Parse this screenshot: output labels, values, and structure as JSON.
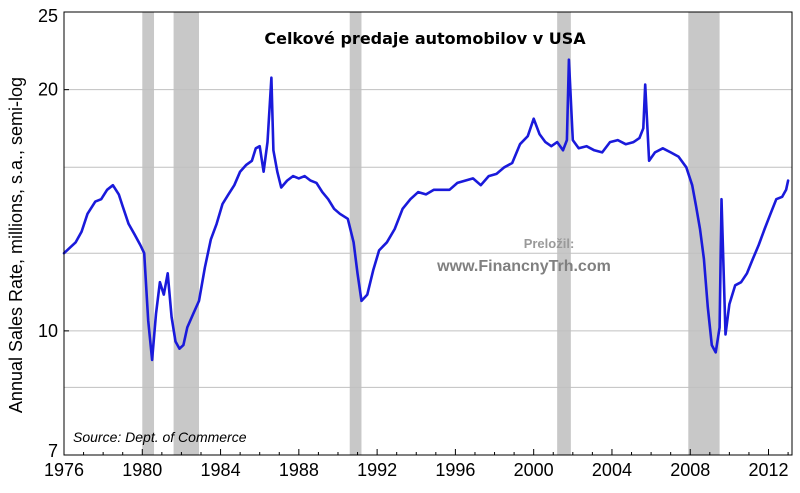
{
  "chart_data": {
    "type": "line",
    "title": "Celkové predaje automobilov v USA",
    "ylabel": "Annual Sales Rate, millions, s.a., semi-log",
    "xlabel": "",
    "source": "Source:  Dept. of Commerce",
    "credit": {
      "line1": "Preložil:",
      "line2": "www.FinancnyTrh.com"
    },
    "y_scale": "log",
    "xlim": [
      1976,
      2013.2
    ],
    "ylim": [
      7,
      25
    ],
    "x_ticks": [
      1976,
      1980,
      1984,
      1988,
      1992,
      1996,
      2000,
      2004,
      2008,
      2012
    ],
    "x_tick_labels": [
      "1976",
      "1980",
      "1984",
      "1988",
      "1992",
      "1996",
      "2000",
      "2004",
      "2008",
      "2012"
    ],
    "y_ticks": [
      7,
      10,
      20,
      25
    ],
    "y_tick_labels": [
      "7",
      "10",
      "20",
      "25"
    ],
    "y_gridlines": [
      8.5,
      10,
      12.5,
      16,
      20
    ],
    "grid": true,
    "recessions": [
      [
        1980.0,
        1980.6
      ],
      [
        1981.6,
        1982.9
      ],
      [
        1990.6,
        1991.2
      ],
      [
        2001.2,
        2001.9
      ],
      [
        2007.9,
        2009.5
      ]
    ],
    "colors": {
      "line": "#1a1adb",
      "recession": "#c8c8c8",
      "grid": "#c0c0c0"
    },
    "series": [
      {
        "x": [
          1976.0,
          1976.3,
          1976.6,
          1976.9,
          1977.2,
          1977.6,
          1977.9,
          1978.2,
          1978.5,
          1978.8,
          1979.0,
          1979.3,
          1979.6,
          1979.9,
          1980.1,
          1980.3,
          1980.5,
          1980.7,
          1980.9,
          1981.1,
          1981.3,
          1981.5,
          1981.7,
          1981.9,
          1982.1,
          1982.3,
          1982.6,
          1982.9,
          1983.2,
          1983.5,
          1983.8,
          1984.1,
          1984.4,
          1984.7,
          1985.0,
          1985.3,
          1985.6,
          1985.8,
          1986.0,
          1986.2,
          1986.4,
          1986.6,
          1986.7,
          1986.9,
          1987.1,
          1987.4,
          1987.7,
          1988.0,
          1988.3,
          1988.6,
          1988.9,
          1989.2,
          1989.5,
          1989.8,
          1990.1,
          1990.5,
          1990.8,
          1991.0,
          1991.2,
          1991.5,
          1991.8,
          1992.1,
          1992.5,
          1992.9,
          1993.3,
          1993.7,
          1994.1,
          1994.5,
          1994.9,
          1995.3,
          1995.7,
          1996.1,
          1996.5,
          1996.9,
          1997.3,
          1997.7,
          1998.1,
          1998.5,
          1998.9,
          1999.3,
          1999.7,
          2000.0,
          2000.3,
          2000.6,
          2000.9,
          2001.2,
          2001.5,
          2001.7,
          2001.8,
          2002.0,
          2002.3,
          2002.7,
          2003.1,
          2003.5,
          2003.9,
          2004.3,
          2004.7,
          2005.1,
          2005.4,
          2005.6,
          2005.7,
          2005.9,
          2006.2,
          2006.6,
          2007.0,
          2007.4,
          2007.8,
          2008.1,
          2008.3,
          2008.5,
          2008.7,
          2008.9,
          2009.1,
          2009.3,
          2009.5,
          2009.6,
          2009.8,
          2010.0,
          2010.3,
          2010.6,
          2010.9,
          2011.2,
          2011.5,
          2011.8,
          2012.1,
          2012.4,
          2012.7,
          2012.9,
          2013.0
        ],
        "y": [
          12.5,
          12.7,
          12.9,
          13.3,
          14.0,
          14.5,
          14.6,
          15.0,
          15.2,
          14.8,
          14.3,
          13.6,
          13.2,
          12.8,
          12.5,
          10.3,
          9.2,
          10.5,
          11.5,
          11.1,
          11.8,
          10.4,
          9.7,
          9.5,
          9.6,
          10.1,
          10.5,
          10.9,
          12.0,
          13.0,
          13.6,
          14.4,
          14.8,
          15.2,
          15.8,
          16.1,
          16.3,
          16.9,
          17.0,
          15.8,
          17.2,
          20.7,
          16.8,
          15.8,
          15.1,
          15.4,
          15.6,
          15.5,
          15.6,
          15.4,
          15.3,
          14.9,
          14.6,
          14.2,
          14.0,
          13.8,
          12.9,
          11.8,
          10.9,
          11.1,
          11.9,
          12.6,
          12.9,
          13.4,
          14.2,
          14.6,
          14.9,
          14.8,
          15.0,
          15.0,
          15.0,
          15.3,
          15.4,
          15.5,
          15.2,
          15.6,
          15.7,
          16.0,
          16.2,
          17.1,
          17.5,
          18.4,
          17.6,
          17.2,
          17.0,
          17.2,
          16.8,
          17.3,
          21.8,
          17.3,
          16.9,
          17.0,
          16.8,
          16.7,
          17.2,
          17.3,
          17.1,
          17.2,
          17.4,
          17.9,
          20.3,
          16.3,
          16.7,
          16.9,
          16.7,
          16.5,
          16.0,
          15.2,
          14.3,
          13.4,
          12.3,
          10.7,
          9.6,
          9.4,
          10.1,
          14.6,
          9.9,
          10.8,
          11.4,
          11.5,
          11.8,
          12.3,
          12.8,
          13.4,
          14.0,
          14.6,
          14.7,
          15.0,
          15.4
        ]
      }
    ]
  }
}
